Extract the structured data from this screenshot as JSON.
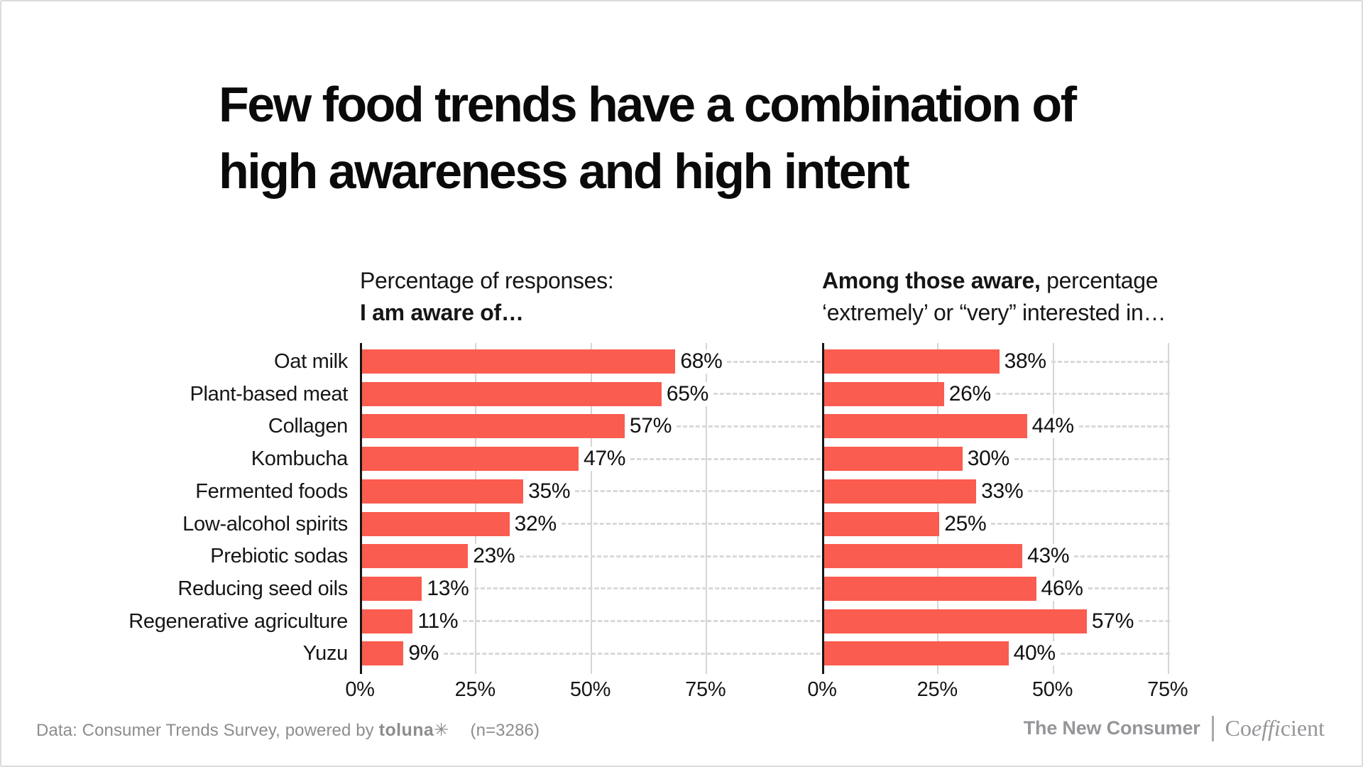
{
  "title": {
    "line1": "Few food trends have a combination of",
    "line2": "high awareness and high intent"
  },
  "chart_data": {
    "type": "bar",
    "orientation": "horizontal",
    "title": "Few food trends have a combination of high awareness and high intent",
    "grid": true,
    "value_suffix": "%",
    "categories": [
      "Oat milk",
      "Plant-based meat",
      "Collagen",
      "Kombucha",
      "Fermented foods",
      "Low-alcohol spirits",
      "Prebiotic sodas",
      "Reducing seed oils",
      "Regenerative agriculture",
      "Yuzu"
    ],
    "series": [
      {
        "name": "I am aware of",
        "subtitle_lines": [
          [
            {
              "text": "Percentage of responses:",
              "bold": false
            }
          ],
          [
            {
              "text": "I am aware of…",
              "bold": true
            }
          ]
        ],
        "values": [
          68,
          65,
          57,
          47,
          35,
          32,
          23,
          13,
          11,
          9
        ],
        "xlim": [
          0,
          100
        ],
        "ticks": [
          {
            "value": 0,
            "label": "0%"
          },
          {
            "value": 25,
            "label": "25%"
          },
          {
            "value": 50,
            "label": "50%"
          },
          {
            "value": 75,
            "label": "75%"
          }
        ]
      },
      {
        "name": "Among those aware, extremely or very interested in",
        "subtitle_lines": [
          [
            {
              "text": "Among those aware,",
              "bold": true
            },
            {
              "text": " percentage",
              "bold": false
            }
          ],
          [
            {
              "text": "‘extremely’ or “very” interested in…",
              "bold": false
            }
          ]
        ],
        "values": [
          38,
          26,
          44,
          30,
          33,
          25,
          43,
          46,
          57,
          40
        ],
        "xlim": [
          0,
          75.5
        ],
        "ticks": [
          {
            "value": 0,
            "label": "0%"
          },
          {
            "value": 25,
            "label": "25%"
          },
          {
            "value": 50,
            "label": "50%"
          },
          {
            "value": 75,
            "label": "75%"
          }
        ]
      }
    ]
  },
  "colors": {
    "bar": "#fa5c4f",
    "axis": "#161616",
    "grid": "#d6d6d6",
    "muted_text": "#8d8d8d",
    "brand_text": "#96969a"
  },
  "footer": {
    "source_text": "Data: Consumer Trends Survey, powered by",
    "toluna": "toluna✳",
    "sample_size": "(n=3286)",
    "brand1": "The New Consumer",
    "brand2_prefix": "Co",
    "brand2_italic": "effi",
    "brand2_suffix": "cient"
  }
}
